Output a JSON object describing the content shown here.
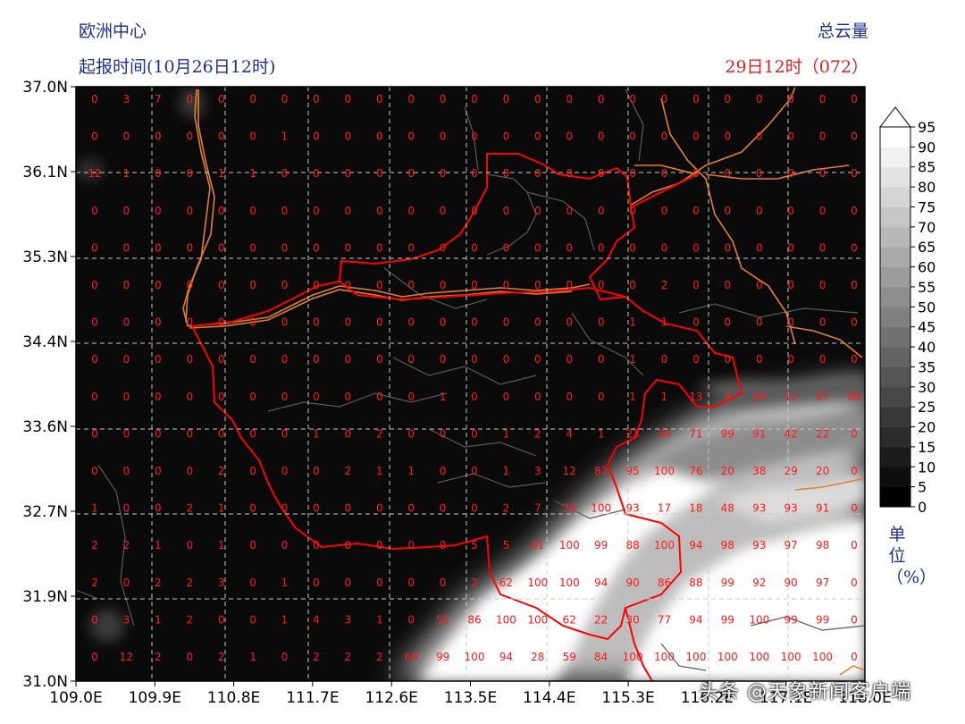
{
  "header": {
    "model": "欧洲中心",
    "init_time": "起报时间(10月26日12时)",
    "variable": "总云量",
    "valid_time": "29日12时（072）"
  },
  "map": {
    "lat_ticks": [
      "37.0N",
      "36.1N",
      "35.3N",
      "34.4N",
      "33.6N",
      "32.7N",
      "31.9N",
      "31.0N"
    ],
    "lon_ticks": [
      "109.0E",
      "109.9E",
      "110.8E",
      "111.7E",
      "112.6E",
      "113.5E",
      "114.4E",
      "115.3E",
      "116.2E",
      "117.1E",
      "118.0E"
    ],
    "background_color": "#0a0a0a",
    "grid_value_color": "#ff1a1a",
    "province_border_color": "#ff0000",
    "river_color": "#e08030"
  },
  "chart_data": {
    "type": "heatmap",
    "title": "总云量",
    "lat_range": [
      31.0,
      37.0
    ],
    "lon_range": [
      109.0,
      118.0
    ],
    "grid_values": [
      [
        0,
        3,
        7,
        0,
        0,
        0,
        0,
        0,
        0,
        0,
        0,
        0,
        0,
        0,
        0,
        0,
        0,
        0,
        0,
        0,
        0,
        0,
        0,
        0,
        0
      ],
      [
        0,
        0,
        0,
        0,
        0,
        0,
        1,
        0,
        0,
        0,
        0,
        0,
        0,
        0,
        0,
        0,
        0,
        0,
        0,
        0,
        0,
        0,
        0,
        0,
        0
      ],
      [
        12,
        1,
        0,
        0,
        1,
        1,
        0,
        0,
        0,
        0,
        0,
        0,
        0,
        0,
        0,
        0,
        0,
        0,
        0,
        0,
        0,
        0,
        0,
        0,
        0
      ],
      [
        0,
        0,
        0,
        0,
        0,
        0,
        0,
        0,
        0,
        0,
        0,
        0,
        0,
        0,
        0,
        0,
        0,
        0,
        0,
        0,
        0,
        0,
        0,
        0,
        0
      ],
      [
        0,
        0,
        0,
        0,
        0,
        0,
        0,
        0,
        0,
        0,
        0,
        0,
        0,
        0,
        0,
        0,
        0,
        0,
        0,
        0,
        0,
        0,
        0,
        0,
        0
      ],
      [
        0,
        0,
        0,
        0,
        0,
        0,
        0,
        0,
        0,
        0,
        0,
        0,
        0,
        0,
        0,
        0,
        0,
        0,
        2,
        0,
        0,
        0,
        0,
        0,
        0
      ],
      [
        0,
        0,
        0,
        0,
        0,
        0,
        0,
        0,
        0,
        0,
        0,
        0,
        0,
        0,
        0,
        0,
        0,
        1,
        1,
        0,
        0,
        0,
        0,
        0,
        0
      ],
      [
        0,
        0,
        0,
        0,
        0,
        0,
        0,
        0,
        0,
        0,
        0,
        0,
        0,
        0,
        0,
        0,
        0,
        1,
        0,
        0,
        0,
        0,
        0,
        0,
        0
      ],
      [
        0,
        0,
        0,
        0,
        0,
        0,
        0,
        0,
        0,
        0,
        0,
        1,
        0,
        0,
        0,
        0,
        0,
        1,
        1,
        13,
        9,
        64,
        12,
        67,
        88
      ],
      [
        0,
        0,
        0,
        0,
        0,
        0,
        0,
        1,
        0,
        2,
        0,
        0,
        0,
        1,
        2,
        4,
        1,
        23,
        36,
        71,
        99,
        91,
        42,
        22,
        0
      ],
      [
        0,
        0,
        0,
        0,
        2,
        0,
        0,
        0,
        2,
        1,
        1,
        0,
        0,
        1,
        3,
        12,
        82,
        95,
        100,
        76,
        20,
        38,
        29,
        20,
        0
      ],
      [
        1,
        0,
        0,
        2,
        1,
        0,
        0,
        0,
        0,
        0,
        0,
        0,
        0,
        2,
        7,
        70,
        100,
        93,
        17,
        18,
        48,
        93,
        93,
        91,
        0
      ],
      [
        2,
        2,
        1,
        0,
        1,
        0,
        0,
        0,
        0,
        0,
        0,
        0,
        5,
        5,
        61,
        100,
        99,
        88,
        100,
        94,
        98,
        93,
        97,
        98,
        0
      ],
      [
        2,
        0,
        2,
        2,
        3,
        0,
        1,
        0,
        0,
        0,
        0,
        0,
        2,
        62,
        100,
        100,
        94,
        90,
        86,
        88,
        99,
        92,
        90,
        97,
        0
      ],
      [
        0,
        3,
        1,
        2,
        0,
        0,
        1,
        4,
        3,
        1,
        0,
        55,
        86,
        100,
        100,
        62,
        22,
        30,
        77,
        94,
        99,
        100,
        99,
        99,
        0
      ],
      [
        0,
        12,
        2,
        0,
        2,
        1,
        0,
        2,
        2,
        2,
        69,
        99,
        100,
        94,
        28,
        59,
        84,
        100,
        100,
        100,
        100,
        100,
        100,
        100,
        0
      ]
    ],
    "colorbar": {
      "label": "单位（%）",
      "levels": [
        0,
        5,
        10,
        15,
        20,
        25,
        30,
        35,
        40,
        45,
        50,
        55,
        60,
        65,
        70,
        75,
        80,
        85,
        90,
        95
      ],
      "tick_labels": [
        "0",
        "5",
        "10",
        "15",
        "20",
        "25",
        "30",
        "35",
        "40",
        "45",
        "50",
        "55",
        "60",
        "65",
        "70",
        "75",
        "80",
        "85",
        "90",
        "95"
      ],
      "cmap": "gray"
    }
  },
  "watermark": "头条 @天象新闻客户端"
}
